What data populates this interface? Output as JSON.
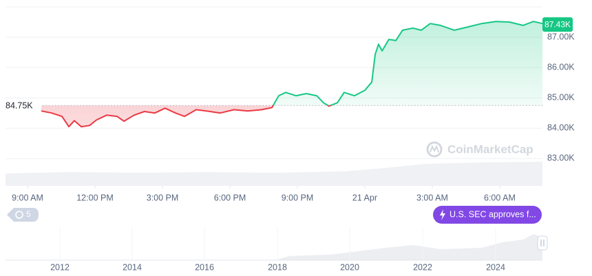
{
  "chart_data": {
    "type": "line",
    "x": [
      0.61,
      1.07,
      1.53,
      1.84,
      2.08,
      2.39,
      2.76,
      3.06,
      3.52,
      3.98,
      4.29,
      4.74,
      5.2,
      5.66,
      6.12,
      6.58,
      6.98,
      7.5,
      7.96,
      8.57,
      9.18,
      9.8,
      10.41,
      10.87,
      11.17,
      11.48,
      11.94,
      12.4,
      12.86,
      13.16,
      13.41,
      13.78,
      14.08,
      14.54,
      15.0,
      15.31,
      15.46,
      15.61,
      15.77,
      16.07,
      16.38,
      16.68,
      17.14,
      17.51,
      17.91,
      18.37,
      18.98,
      19.59,
      20.2,
      20.82,
      21.43,
      22.04,
      22.5,
      22.9
    ],
    "values": [
      84.57,
      84.5,
      84.39,
      84.05,
      84.25,
      84.05,
      84.09,
      84.27,
      84.43,
      84.39,
      84.23,
      84.43,
      84.55,
      84.5,
      84.66,
      84.5,
      84.39,
      84.61,
      84.57,
      84.5,
      84.61,
      84.57,
      84.61,
      84.68,
      85.07,
      85.18,
      85.07,
      85.14,
      85.07,
      84.84,
      84.73,
      84.84,
      85.18,
      85.07,
      85.25,
      85.52,
      86.43,
      86.77,
      86.55,
      86.93,
      86.89,
      87.23,
      87.3,
      87.23,
      87.45,
      87.39,
      87.23,
      87.34,
      87.45,
      87.52,
      87.5,
      87.39,
      87.52,
      87.45
    ],
    "up_color": "#16c784",
    "down_color": "#ea3943",
    "baseline": {
      "value": 84.75,
      "label": "84.75K"
    },
    "current_price": {
      "value": 87.43,
      "label": "87.43K"
    },
    "xlim": [
      -0.98,
      22.9
    ],
    "xticks": [
      {
        "value": 0,
        "label": "9:00 AM"
      },
      {
        "value": 3,
        "label": "12:00 PM"
      },
      {
        "value": 6,
        "label": "3:00 PM"
      },
      {
        "value": 9,
        "label": "6:00 PM"
      },
      {
        "value": 12,
        "label": "9:00 PM"
      },
      {
        "value": 15,
        "label": "21 Apr"
      },
      {
        "value": 18,
        "label": "3:00 AM"
      },
      {
        "value": 21,
        "label": "6:00 AM"
      }
    ],
    "ylim": [
      82.1,
      88.0
    ],
    "yticks": [
      {
        "value": 83,
        "label": "83.00K"
      },
      {
        "value": 84,
        "label": "84.00K"
      },
      {
        "value": 85,
        "label": "85.00K"
      },
      {
        "value": 86,
        "label": "86.00K"
      },
      {
        "value": 87,
        "label": "87.00K"
      }
    ],
    "grid": true,
    "watermark": "CoinMarketCap",
    "history_badge": 5,
    "event_marker": {
      "label": "U.S. SEC approves f..."
    },
    "navigator": {
      "xticks": [
        "2012",
        "2014",
        "2016",
        "2018",
        "2020",
        "2022",
        "2024"
      ]
    }
  }
}
